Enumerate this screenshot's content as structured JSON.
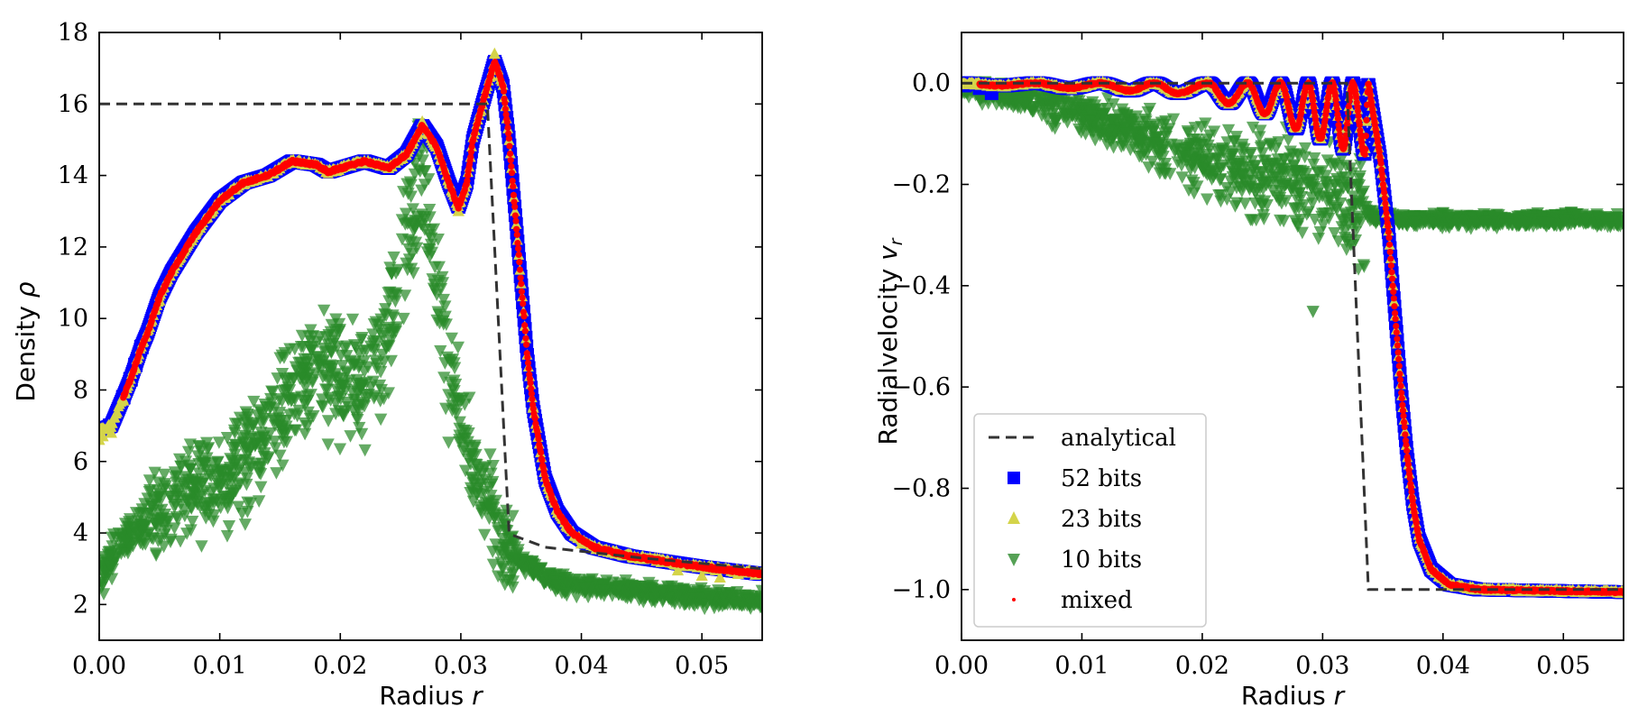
{
  "chart_data": [
    {
      "type": "scatter",
      "xlabel": "Radius",
      "xlabel_var": "r",
      "ylabel": "Density",
      "ylabel_var": "ρ",
      "xlim": [
        0.0,
        0.055
      ],
      "ylim": [
        1.0,
        18.0
      ],
      "xticks": [
        0.0,
        0.01,
        0.02,
        0.03,
        0.04,
        0.05
      ],
      "xtick_labels": [
        "0.00",
        "0.01",
        "0.02",
        "0.03",
        "0.04",
        "0.05"
      ],
      "yticks": [
        2,
        4,
        6,
        8,
        10,
        12,
        14,
        16,
        18
      ],
      "ytick_labels": [
        "2",
        "4",
        "6",
        "8",
        "10",
        "12",
        "14",
        "16",
        "18"
      ],
      "series": [
        {
          "name": "analytical",
          "style": "dashed-line",
          "color": "#333333",
          "x": [
            0.0,
            0.0322,
            0.034,
            0.0342,
            0.037,
            0.045,
            0.055
          ],
          "y": [
            16.0,
            16.0,
            4.0,
            3.95,
            3.6,
            3.3,
            3.0
          ]
        },
        {
          "name": "52 bits",
          "marker": "square",
          "color": "#0000ff",
          "x": [
            0.0,
            0.0003,
            0.001,
            0.002,
            0.0026,
            0.003,
            0.0035,
            0.004,
            0.005,
            0.006,
            0.008,
            0.01,
            0.012,
            0.014,
            0.016,
            0.018,
            0.019,
            0.02,
            0.022,
            0.024,
            0.0255,
            0.0268,
            0.028,
            0.029,
            0.0298,
            0.0305,
            0.031,
            0.0318,
            0.0328,
            0.0335,
            0.034,
            0.0345,
            0.035,
            0.0355,
            0.036,
            0.037,
            0.038,
            0.0392,
            0.041,
            0.044,
            0.047,
            0.05,
            0.0525,
            0.055
          ],
          "y": [
            6.85,
            6.9,
            7.0,
            7.8,
            8.3,
            8.7,
            9.2,
            9.6,
            10.6,
            11.3,
            12.4,
            13.3,
            13.8,
            14.0,
            14.4,
            14.3,
            14.1,
            14.2,
            14.4,
            14.2,
            14.6,
            15.4,
            14.8,
            13.8,
            13.1,
            13.8,
            15.0,
            16.0,
            17.2,
            16.5,
            15.0,
            13.0,
            11.0,
            9.0,
            7.5,
            5.5,
            4.6,
            4.0,
            3.6,
            3.35,
            3.2,
            3.05,
            2.95,
            2.85
          ]
        },
        {
          "name": "23 bits",
          "marker": "triangle-up",
          "color": "#d4d44a",
          "x": [
            0.0,
            0.0003,
            0.001,
            0.002,
            0.003,
            0.005,
            0.008,
            0.012,
            0.016,
            0.02,
            0.024,
            0.0268,
            0.0298,
            0.0328,
            0.036,
            0.04,
            0.048,
            0.05,
            0.0515,
            0.053
          ],
          "y": [
            6.6,
            6.7,
            6.8,
            7.7,
            8.6,
            10.5,
            12.4,
            13.8,
            14.4,
            14.2,
            14.2,
            15.5,
            13.0,
            17.4,
            7.5,
            3.7,
            2.95,
            2.8,
            2.75,
            2.85
          ]
        },
        {
          "name": "10 bits",
          "marker": "triangle-down",
          "color": "#2a8a2a",
          "trend_x": [
            0.0,
            0.0015,
            0.004,
            0.007,
            0.01,
            0.013,
            0.016,
            0.0185,
            0.021,
            0.023,
            0.0245,
            0.0258,
            0.0266,
            0.0272,
            0.028,
            0.029,
            0.03,
            0.031,
            0.032,
            0.033,
            0.034,
            0.035,
            0.036,
            0.037,
            0.038,
            0.04,
            0.045,
            0.05,
            0.055
          ],
          "trend_y": [
            2.7,
            3.6,
            4.4,
            5.0,
            5.4,
            6.3,
            7.8,
            8.9,
            8.1,
            8.3,
            10.5,
            13.0,
            14.4,
            13.5,
            11.0,
            8.7,
            7.2,
            5.9,
            4.9,
            4.2,
            3.6,
            3.2,
            3.0,
            2.85,
            2.6,
            2.5,
            2.35,
            2.2,
            2.1
          ]
        },
        {
          "name": "mixed",
          "marker": "point",
          "color": "#ff0000",
          "note": "overlaps the 52 bits / 23 bits solution"
        }
      ]
    },
    {
      "type": "scatter",
      "xlabel": "Radius",
      "xlabel_var": "r",
      "ylabel": "Radialvelocity",
      "ylabel_var": "v",
      "ylabel_sub": "r",
      "xlim": [
        0.0,
        0.055
      ],
      "ylim": [
        -1.1,
        0.1
      ],
      "xticks": [
        0.0,
        0.01,
        0.02,
        0.03,
        0.04,
        0.05
      ],
      "xtick_labels": [
        "0.00",
        "0.01",
        "0.02",
        "0.03",
        "0.04",
        "0.05"
      ],
      "yticks": [
        0.0,
        -0.2,
        -0.4,
        -0.6,
        -0.8,
        -1.0
      ],
      "ytick_labels": [
        "0.0",
        "−0.2",
        "−0.4",
        "−0.6",
        "−0.8",
        "−1.0"
      ],
      "legend_position": "lower-left",
      "series": [
        {
          "name": "analytical",
          "style": "dashed-line",
          "color": "#333333",
          "x": [
            0.0,
            0.032,
            0.0338,
            0.034,
            0.055
          ],
          "y": [
            0.0,
            0.0,
            -1.0,
            -1.0,
            -1.0
          ]
        },
        {
          "name": "52 bits",
          "marker": "square",
          "color": "#0000ff",
          "oscillation_peaks_x": [
            0.0,
            0.0062,
            0.0115,
            0.016,
            0.0205,
            0.0238,
            0.0265,
            0.0288,
            0.0308,
            0.0325
          ],
          "oscillation_troughs_x": [
            0.0032,
            0.009,
            0.014,
            0.018,
            0.0222,
            0.0252,
            0.0278,
            0.0298,
            0.0317,
            0.0335
          ],
          "oscillation_troughs_y": [
            -0.005,
            -0.01,
            -0.015,
            -0.02,
            -0.04,
            -0.06,
            -0.09,
            -0.11,
            -0.13,
            -0.14
          ],
          "shock_x": [
            0.0338,
            0.0348,
            0.0355,
            0.036,
            0.0365,
            0.037,
            0.0375,
            0.038,
            0.039,
            0.0405,
            0.043,
            0.055
          ],
          "shock_y": [
            0.0,
            -0.15,
            -0.3,
            -0.45,
            -0.6,
            -0.73,
            -0.83,
            -0.9,
            -0.96,
            -0.99,
            -1.0,
            -1.005
          ]
        },
        {
          "name": "23 bits",
          "marker": "triangle-up",
          "color": "#d4d44a",
          "x": [
            0.0,
            0.01,
            0.02,
            0.03,
            0.034,
            0.036,
            0.038,
            0.04,
            0.045,
            0.05,
            0.055
          ],
          "y": [
            0.0,
            -0.01,
            -0.02,
            -0.12,
            0.0,
            -0.45,
            -0.9,
            -0.99,
            -0.995,
            -0.995,
            -0.995
          ]
        },
        {
          "name": "10 bits",
          "marker": "triangle-down",
          "color": "#2a8a2a",
          "trend_x": [
            0.0,
            0.005,
            0.01,
            0.015,
            0.02,
            0.025,
            0.028,
            0.0305,
            0.033,
            0.035,
            0.04,
            0.045,
            0.05,
            0.055
          ],
          "trend_y": [
            -0.01,
            -0.03,
            -0.06,
            -0.1,
            -0.15,
            -0.18,
            -0.2,
            -0.2,
            -0.25,
            -0.27,
            -0.27,
            -0.27,
            -0.27,
            -0.27
          ],
          "outlier": [
            0.0292,
            -0.45
          ]
        },
        {
          "name": "mixed",
          "marker": "point",
          "color": "#ff0000",
          "note": "overlaps the 52 bits / 23 bits solution"
        }
      ],
      "legend": [
        {
          "label": "analytical",
          "marker": "dashed-line",
          "color": "#333333"
        },
        {
          "label": "52 bits",
          "marker": "square",
          "color": "#0000ff"
        },
        {
          "label": "23 bits",
          "marker": "triangle-up",
          "color": "#d4d44a"
        },
        {
          "label": "10 bits",
          "marker": "triangle-down",
          "color": "#2a8a2a"
        },
        {
          "label": "mixed",
          "marker": "point",
          "color": "#ff0000"
        }
      ]
    }
  ]
}
